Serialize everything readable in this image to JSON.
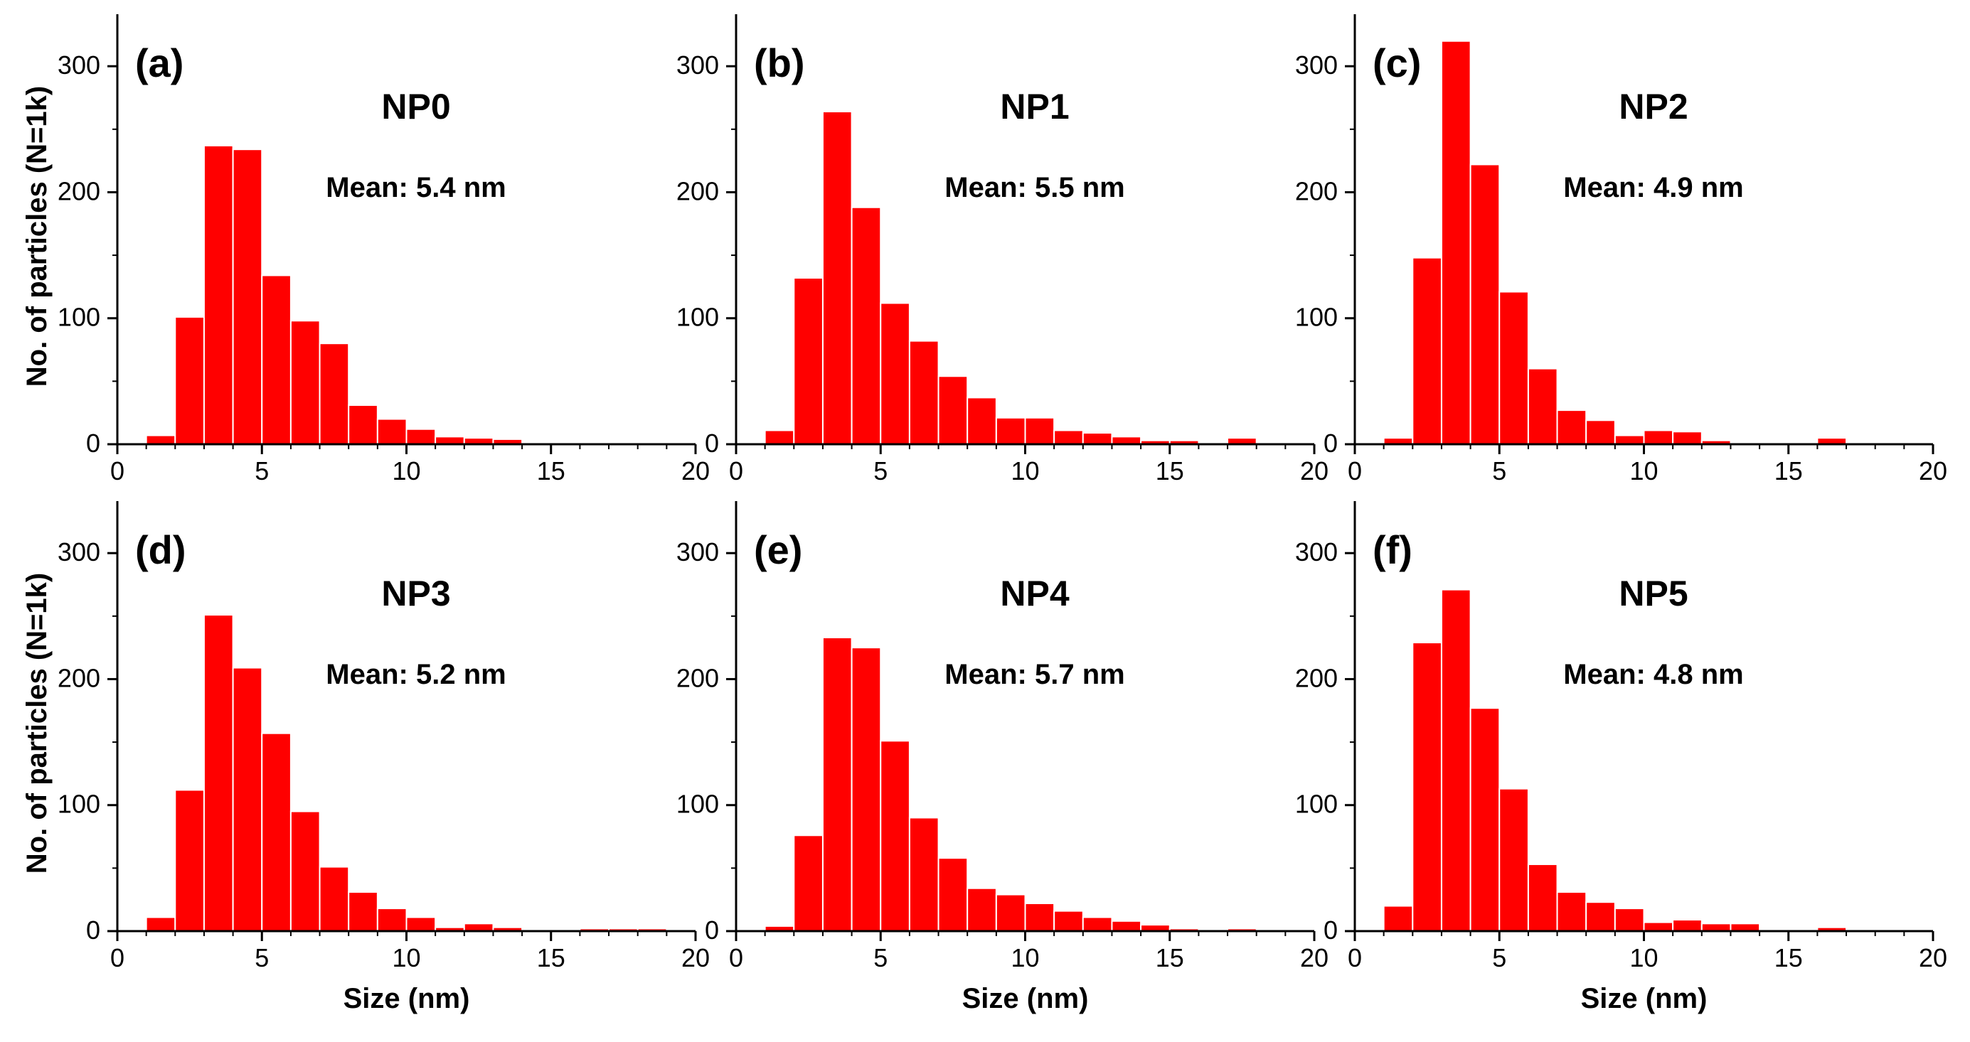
{
  "bar_color": "#ff0000",
  "bar_edge_color": "#ffffff",
  "ylabel": "No. of particles (N=1k)",
  "xlabel": "Size (nm)",
  "chart_data": [
    {
      "type": "bar",
      "panel": "(a)",
      "sample": "NP0",
      "mean_text": "Mean: 5.4 nm",
      "bin_width": 1,
      "bin_starts": [
        1,
        2,
        3,
        4,
        5,
        6,
        7,
        8,
        9,
        10,
        11,
        12,
        13,
        14,
        15,
        16,
        17,
        18,
        19
      ],
      "values": [
        7,
        101,
        237,
        234,
        134,
        98,
        80,
        31,
        20,
        12,
        6,
        5,
        4,
        0,
        0,
        0,
        0,
        0,
        0
      ],
      "xlim": [
        0,
        20
      ],
      "ylim": [
        0,
        330
      ],
      "xticks": [
        0,
        5,
        10,
        15,
        20
      ],
      "yticks": [
        0,
        100,
        200,
        300
      ]
    },
    {
      "type": "bar",
      "panel": "(b)",
      "sample": "NP1",
      "mean_text": "Mean: 5.5 nm",
      "bin_width": 1,
      "bin_starts": [
        1,
        2,
        3,
        4,
        5,
        6,
        7,
        8,
        9,
        10,
        11,
        12,
        13,
        14,
        15,
        16,
        17,
        18,
        19
      ],
      "values": [
        11,
        132,
        264,
        188,
        112,
        82,
        54,
        37,
        21,
        21,
        11,
        9,
        6,
        3,
        3,
        0,
        5,
        0,
        0
      ],
      "xlim": [
        0,
        20
      ],
      "ylim": [
        0,
        330
      ],
      "xticks": [
        0,
        5,
        10,
        15,
        20
      ],
      "yticks": [
        0,
        100,
        200,
        300
      ]
    },
    {
      "type": "bar",
      "panel": "(c)",
      "sample": "NP2",
      "mean_text": "Mean: 4.9 nm",
      "bin_width": 1,
      "bin_starts": [
        1,
        2,
        3,
        4,
        5,
        6,
        7,
        8,
        9,
        10,
        11,
        12,
        13,
        14,
        15,
        16,
        17,
        18,
        19
      ],
      "values": [
        5,
        148,
        320,
        222,
        121,
        60,
        27,
        19,
        7,
        11,
        10,
        3,
        0,
        0,
        1,
        5,
        0,
        0,
        1
      ],
      "xlim": [
        0,
        20
      ],
      "ylim": [
        0,
        330
      ],
      "xticks": [
        0,
        5,
        10,
        15,
        20
      ],
      "yticks": [
        0,
        100,
        200,
        300
      ]
    },
    {
      "type": "bar",
      "panel": "(d)",
      "sample": "NP3",
      "mean_text": "Mean: 5.2 nm",
      "bin_width": 1,
      "bin_starts": [
        1,
        2,
        3,
        4,
        5,
        6,
        7,
        8,
        9,
        10,
        11,
        12,
        13,
        14,
        15,
        16,
        17,
        18,
        19
      ],
      "values": [
        11,
        112,
        251,
        209,
        157,
        95,
        51,
        31,
        18,
        11,
        3,
        6,
        3,
        0,
        0,
        2,
        2,
        2,
        0
      ],
      "xlim": [
        0,
        20
      ],
      "ylim": [
        0,
        330
      ],
      "xticks": [
        0,
        5,
        10,
        15,
        20
      ],
      "yticks": [
        0,
        100,
        200,
        300
      ]
    },
    {
      "type": "bar",
      "panel": "(e)",
      "sample": "NP4",
      "mean_text": "Mean: 5.7 nm",
      "bin_width": 1,
      "bin_starts": [
        1,
        2,
        3,
        4,
        5,
        6,
        7,
        8,
        9,
        10,
        11,
        12,
        13,
        14,
        15,
        16,
        17,
        18,
        19
      ],
      "values": [
        4,
        76,
        233,
        225,
        151,
        90,
        58,
        34,
        29,
        22,
        16,
        11,
        8,
        5,
        2,
        1,
        2,
        0,
        0
      ],
      "xlim": [
        0,
        20
      ],
      "ylim": [
        0,
        330
      ],
      "xticks": [
        0,
        5,
        10,
        15,
        20
      ],
      "yticks": [
        0,
        100,
        200,
        300
      ]
    },
    {
      "type": "bar",
      "panel": "(f)",
      "sample": "NP5",
      "mean_text": "Mean: 4.8 nm",
      "bin_width": 1,
      "bin_starts": [
        1,
        2,
        3,
        4,
        5,
        6,
        7,
        8,
        9,
        10,
        11,
        12,
        13,
        14,
        15,
        16,
        17,
        18,
        19
      ],
      "values": [
        20,
        229,
        271,
        177,
        113,
        53,
        31,
        23,
        18,
        7,
        9,
        6,
        6,
        0,
        0,
        3,
        0,
        0,
        0
      ],
      "xlim": [
        0,
        20
      ],
      "ylim": [
        0,
        330
      ],
      "xticks": [
        0,
        5,
        10,
        15,
        20
      ],
      "yticks": [
        0,
        100,
        200,
        300
      ]
    }
  ]
}
